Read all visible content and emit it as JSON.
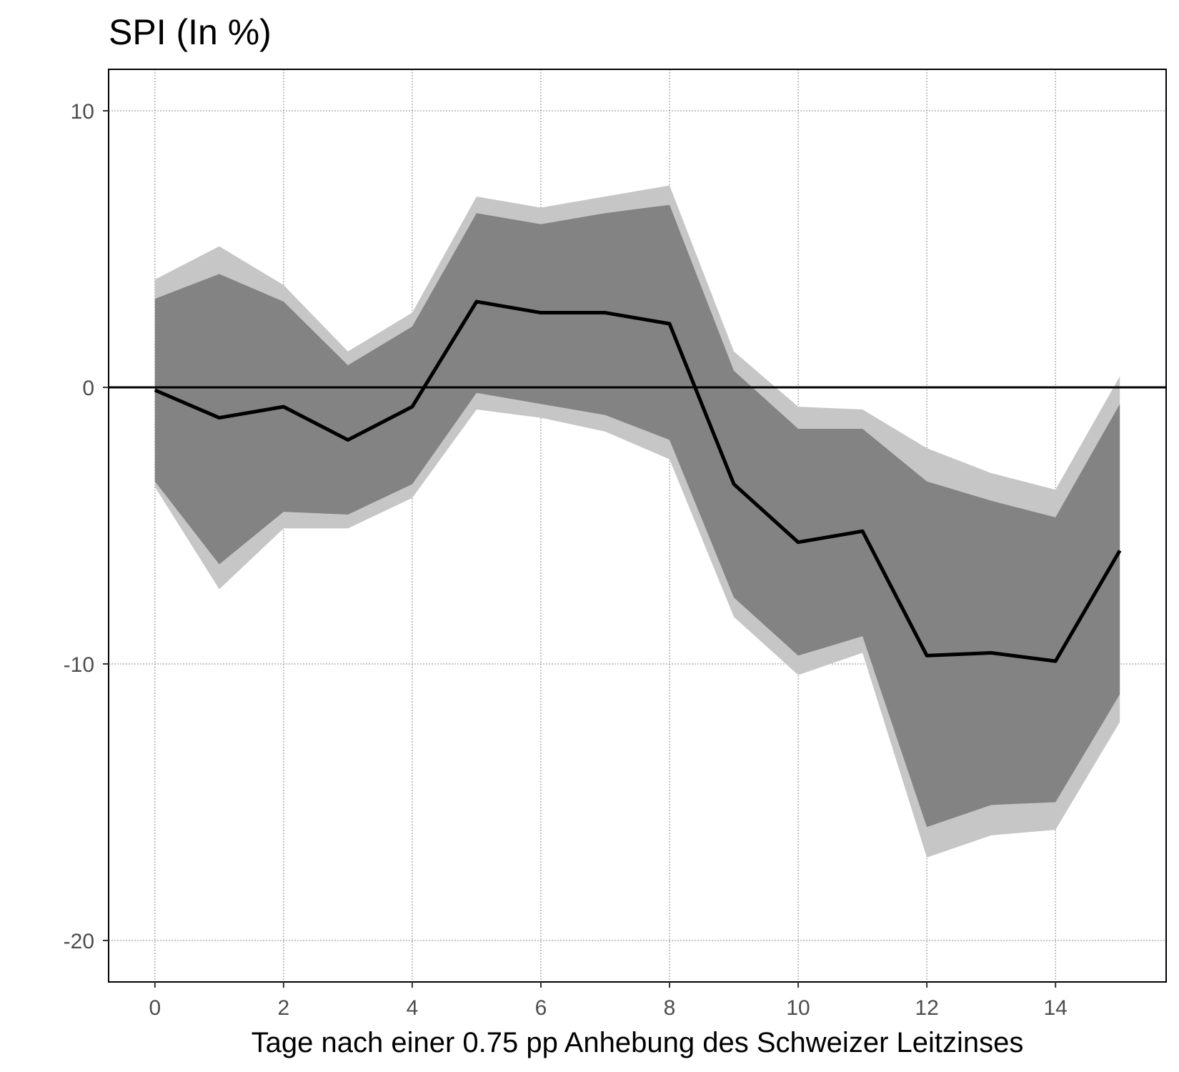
{
  "chart_data": {
    "type": "line",
    "title": "SPI (In %)",
    "xlabel": "Tage nach einer 0.75 pp Anhebung des Schweizer Leitzinses",
    "ylabel": "",
    "xlim": [
      -0.72,
      15.72
    ],
    "ylim": [
      -21.5,
      11.5
    ],
    "xticks": [
      0,
      2,
      4,
      6,
      8,
      10,
      12,
      14
    ],
    "xtick_labels": [
      "0",
      "2",
      "4",
      "6",
      "8",
      "10",
      "12",
      "14"
    ],
    "yticks": [
      10,
      0,
      -10,
      -20
    ],
    "ytick_labels": [
      "10",
      "0",
      "-10",
      "-20"
    ],
    "grid": true,
    "zero_line": 0,
    "x": [
      0,
      1,
      2,
      3,
      4,
      5,
      6,
      7,
      8,
      9,
      10,
      11,
      12,
      13,
      14,
      15
    ],
    "series": [
      {
        "role": "outer-band-upper",
        "color": "#c6c6c6",
        "values": [
          3.9,
          5.1,
          3.7,
          1.3,
          2.7,
          6.9,
          6.5,
          6.9,
          7.3,
          1.3,
          -0.7,
          -0.8,
          -2.2,
          -3.1,
          -3.7,
          0.4
        ]
      },
      {
        "role": "outer-band-lower",
        "color": "#c6c6c6",
        "values": [
          -3.6,
          -7.3,
          -5.1,
          -5.1,
          -4.0,
          -0.8,
          -1.1,
          -1.6,
          -2.6,
          -8.3,
          -10.4,
          -9.6,
          -17.0,
          -16.2,
          -16.0,
          -12.1
        ]
      },
      {
        "role": "inner-band-upper",
        "color": "#838383",
        "values": [
          3.2,
          4.1,
          3.1,
          0.8,
          2.2,
          6.3,
          5.9,
          6.3,
          6.6,
          0.6,
          -1.5,
          -1.5,
          -3.4,
          -4.1,
          -4.7,
          -0.6
        ]
      },
      {
        "role": "inner-band-lower",
        "color": "#838383",
        "values": [
          -3.4,
          -6.4,
          -4.5,
          -4.6,
          -3.5,
          -0.2,
          -0.6,
          -1.0,
          -1.9,
          -7.6,
          -9.7,
          -9.0,
          -15.9,
          -15.1,
          -15.0,
          -11.1
        ]
      },
      {
        "role": "response",
        "color": "#000000",
        "values": [
          -0.1,
          -1.1,
          -0.7,
          -1.9,
          -0.7,
          3.1,
          2.7,
          2.7,
          2.3,
          -3.5,
          -5.6,
          -5.2,
          -9.7,
          -9.6,
          -9.9,
          -5.9
        ]
      }
    ]
  }
}
